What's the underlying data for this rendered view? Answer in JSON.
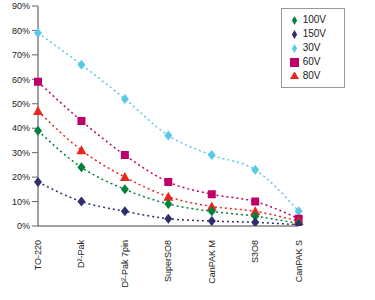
{
  "chart_data": {
    "type": "line",
    "categories": [
      "TO-220",
      "D²-Pak",
      "D²-Pak 7pin",
      "SuperSO8",
      "CanPAK M",
      "S3O8",
      "CanPAK S"
    ],
    "series": [
      {
        "name": "30V",
        "color": "#5bc8e8",
        "marker": "diamond",
        "line_style": "dotted",
        "values": [
          79,
          66,
          52,
          37,
          29,
          23,
          6
        ]
      },
      {
        "name": "60V",
        "color": "#c0006a",
        "marker": "square",
        "line_style": "dotted",
        "values": [
          59,
          43,
          29,
          18,
          13,
          10,
          3
        ]
      },
      {
        "name": "80V",
        "color": "#e8261e",
        "marker": "triangle",
        "line_style": "dotted",
        "values": [
          47,
          31,
          20,
          12,
          8,
          6,
          2
        ]
      },
      {
        "name": "100V",
        "color": "#00803c",
        "marker": "diamond",
        "line_style": "dotted",
        "values": [
          39,
          24,
          15,
          9,
          6,
          4,
          1
        ]
      },
      {
        "name": "150V",
        "color": "#2e2e70",
        "marker": "diamond",
        "line_style": "dotted",
        "values": [
          18,
          10,
          6,
          3,
          2,
          1.5,
          0.5
        ]
      }
    ],
    "ylim": [
      0,
      90
    ],
    "yticks": [
      {
        "value": 0,
        "label": "0%"
      },
      {
        "value": 10,
        "label": "10%"
      },
      {
        "value": 20,
        "label": "20%"
      },
      {
        "value": 30,
        "label": "30%"
      },
      {
        "value": 40,
        "label": "40%"
      },
      {
        "value": 50,
        "label": "50%"
      },
      {
        "value": 60,
        "label": "60%"
      },
      {
        "value": 70,
        "label": "70%"
      },
      {
        "value": 80,
        "label": "80%"
      },
      {
        "value": 90,
        "label": "90%"
      }
    ],
    "grid": false,
    "legend": "upper right"
  }
}
